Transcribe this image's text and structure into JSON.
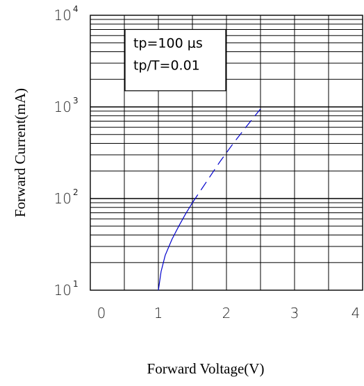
{
  "chart_data": {
    "type": "line",
    "xlabel": "Forward Voltage(V)",
    "ylabel": "Forward Current(mA)",
    "x_ticks": [
      "0",
      "1",
      "2",
      "3",
      "4"
    ],
    "y_ticks": [
      {
        "base": "10",
        "exp": "1",
        "value": 10
      },
      {
        "base": "10",
        "exp": "2",
        "value": 100
      },
      {
        "base": "10",
        "exp": "3",
        "value": 1000
      },
      {
        "base": "10",
        "exp": "4",
        "value": 10000
      }
    ],
    "xlim": [
      0,
      4
    ],
    "ylim": [
      10,
      10000
    ],
    "y_scale": "log",
    "grid": true,
    "annotation": [
      "tp=100 μs",
      "tp/T=0.01"
    ],
    "series": [
      {
        "color": "#0000cc",
        "solid": {
          "x": [
            1.0,
            1.04,
            1.1,
            1.2,
            1.3,
            1.4,
            1.5
          ],
          "y": [
            10,
            16,
            24,
            36,
            50,
            68,
            90
          ]
        },
        "dashed": {
          "x": [
            1.5,
            1.7,
            1.9,
            2.1,
            2.3,
            2.5
          ],
          "y": [
            90,
            150,
            250,
            400,
            620,
            950
          ]
        }
      }
    ]
  }
}
